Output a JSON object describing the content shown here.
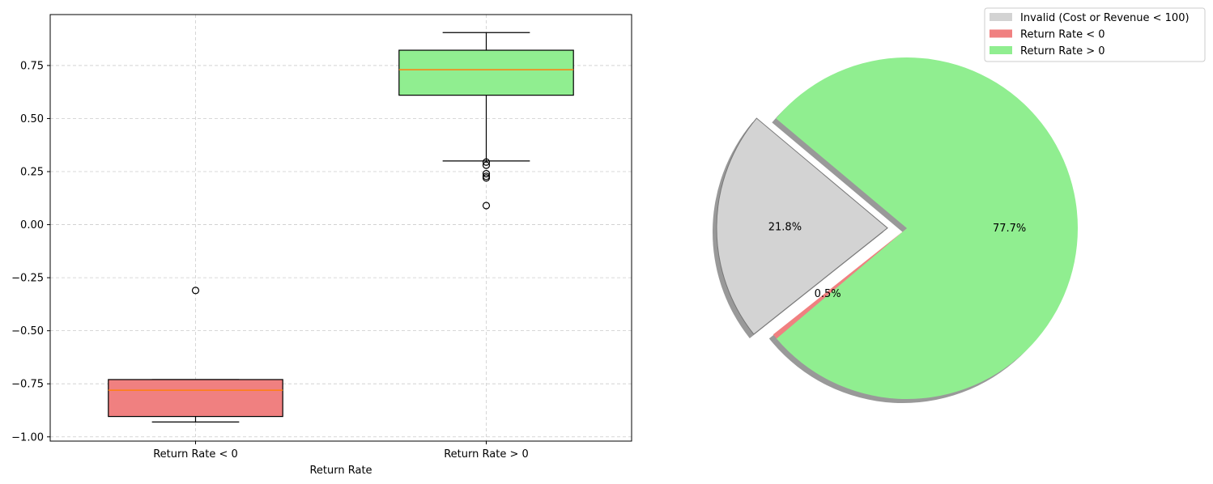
{
  "chart_data": [
    {
      "type": "box",
      "title": "",
      "xlabel": "Return Rate",
      "ylabel": "",
      "categories": [
        "Return Rate < 0",
        "Return Rate > 0"
      ],
      "ylim": [
        -1.02,
        0.99
      ],
      "yticks": [
        -1.0,
        -0.75,
        -0.5,
        -0.25,
        0.0,
        0.25,
        0.5,
        0.75
      ],
      "ytick_labels": [
        "−1.00",
        "−0.75",
        "−0.50",
        "−0.25",
        "0.00",
        "0.25",
        "0.50",
        "0.75"
      ],
      "grid": true,
      "boxes": [
        {
          "category": "Return Rate < 0",
          "whisker_low": -0.93,
          "q1": -0.904,
          "median": -0.78,
          "q3": -0.73,
          "whisker_high": -0.73,
          "outliers": [
            -0.31
          ],
          "color": "#f08080"
        },
        {
          "category": "Return Rate > 0",
          "whisker_low": 0.3,
          "q1": 0.61,
          "median": 0.73,
          "q3": 0.822,
          "whisker_high": 0.905,
          "outliers": [
            0.295,
            0.28,
            0.24,
            0.228,
            0.22,
            0.09
          ],
          "color": "#90ee90"
        }
      ]
    },
    {
      "type": "pie",
      "title": "",
      "slices": [
        {
          "label": "Invalid (Cost or Revenue < 100)",
          "value": 21.8,
          "display": "21.8%",
          "color": "#d3d3d3",
          "explode": true
        },
        {
          "label": "Return Rate < 0",
          "value": 0.5,
          "display": "0.5%",
          "color": "#f08080",
          "explode": false
        },
        {
          "label": "Return Rate > 0",
          "value": 77.7,
          "display": "77.7%",
          "color": "#90ee90",
          "explode": false
        }
      ],
      "shadow": true,
      "legend_position": "top-right"
    }
  ]
}
